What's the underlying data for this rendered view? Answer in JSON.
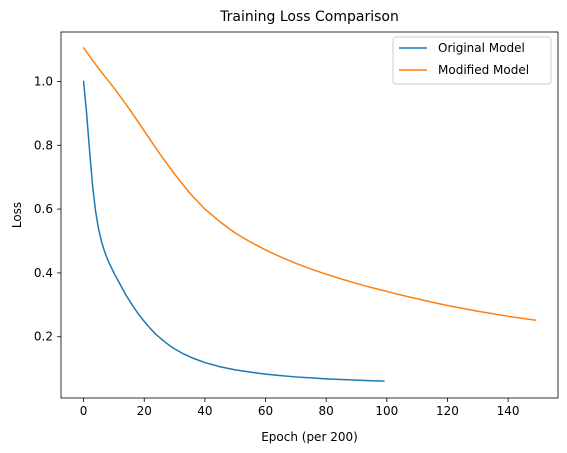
{
  "chart_data": {
    "type": "line",
    "title": "Training Loss Comparison",
    "xlabel": "Epoch (per 200)",
    "ylabel": "Loss",
    "xlim": [
      -7.45,
      156.45
    ],
    "ylim": [
      0.008,
      1.155
    ],
    "xticks": [
      0,
      20,
      40,
      60,
      80,
      100,
      120,
      140
    ],
    "yticks": [
      0.2,
      0.4,
      0.6,
      0.8,
      1.0
    ],
    "grid": false,
    "legend": "top-right",
    "series": [
      {
        "name": "Original Model",
        "color": "#1f77b4",
        "points": [
          [
            0,
            1.0
          ],
          [
            1,
            0.9
          ],
          [
            2,
            0.78
          ],
          [
            3,
            0.67
          ],
          [
            4,
            0.59
          ],
          [
            5,
            0.535
          ],
          [
            6,
            0.495
          ],
          [
            7,
            0.465
          ],
          [
            8,
            0.44
          ],
          [
            9,
            0.42
          ],
          [
            10,
            0.4
          ],
          [
            12,
            0.365
          ],
          [
            14,
            0.33
          ],
          [
            16,
            0.3
          ],
          [
            18,
            0.272
          ],
          [
            20,
            0.248
          ],
          [
            22,
            0.226
          ],
          [
            24,
            0.206
          ],
          [
            26,
            0.19
          ],
          [
            28,
            0.175
          ],
          [
            30,
            0.162
          ],
          [
            33,
            0.146
          ],
          [
            36,
            0.133
          ],
          [
            40,
            0.119
          ],
          [
            45,
            0.106
          ],
          [
            50,
            0.096
          ],
          [
            55,
            0.089
          ],
          [
            60,
            0.083
          ],
          [
            65,
            0.078
          ],
          [
            70,
            0.074
          ],
          [
            75,
            0.071
          ],
          [
            80,
            0.068
          ],
          [
            85,
            0.066
          ],
          [
            90,
            0.064
          ],
          [
            95,
            0.062
          ],
          [
            99,
            0.061
          ]
        ]
      },
      {
        "name": "Modified Model",
        "color": "#ff7f0e",
        "points": [
          [
            0,
            1.105
          ],
          [
            5,
            1.04
          ],
          [
            10,
            0.98
          ],
          [
            15,
            0.915
          ],
          [
            20,
            0.845
          ],
          [
            25,
            0.775
          ],
          [
            30,
            0.71
          ],
          [
            35,
            0.65
          ],
          [
            40,
            0.6
          ],
          [
            45,
            0.56
          ],
          [
            50,
            0.525
          ],
          [
            55,
            0.497
          ],
          [
            60,
            0.472
          ],
          [
            65,
            0.45
          ],
          [
            70,
            0.43
          ],
          [
            75,
            0.412
          ],
          [
            80,
            0.396
          ],
          [
            85,
            0.381
          ],
          [
            90,
            0.367
          ],
          [
            95,
            0.354
          ],
          [
            100,
            0.342
          ],
          [
            105,
            0.33
          ],
          [
            110,
            0.319
          ],
          [
            115,
            0.308
          ],
          [
            120,
            0.298
          ],
          [
            125,
            0.289
          ],
          [
            130,
            0.28
          ],
          [
            135,
            0.272
          ],
          [
            140,
            0.264
          ],
          [
            145,
            0.257
          ],
          [
            149,
            0.252
          ]
        ]
      }
    ]
  }
}
